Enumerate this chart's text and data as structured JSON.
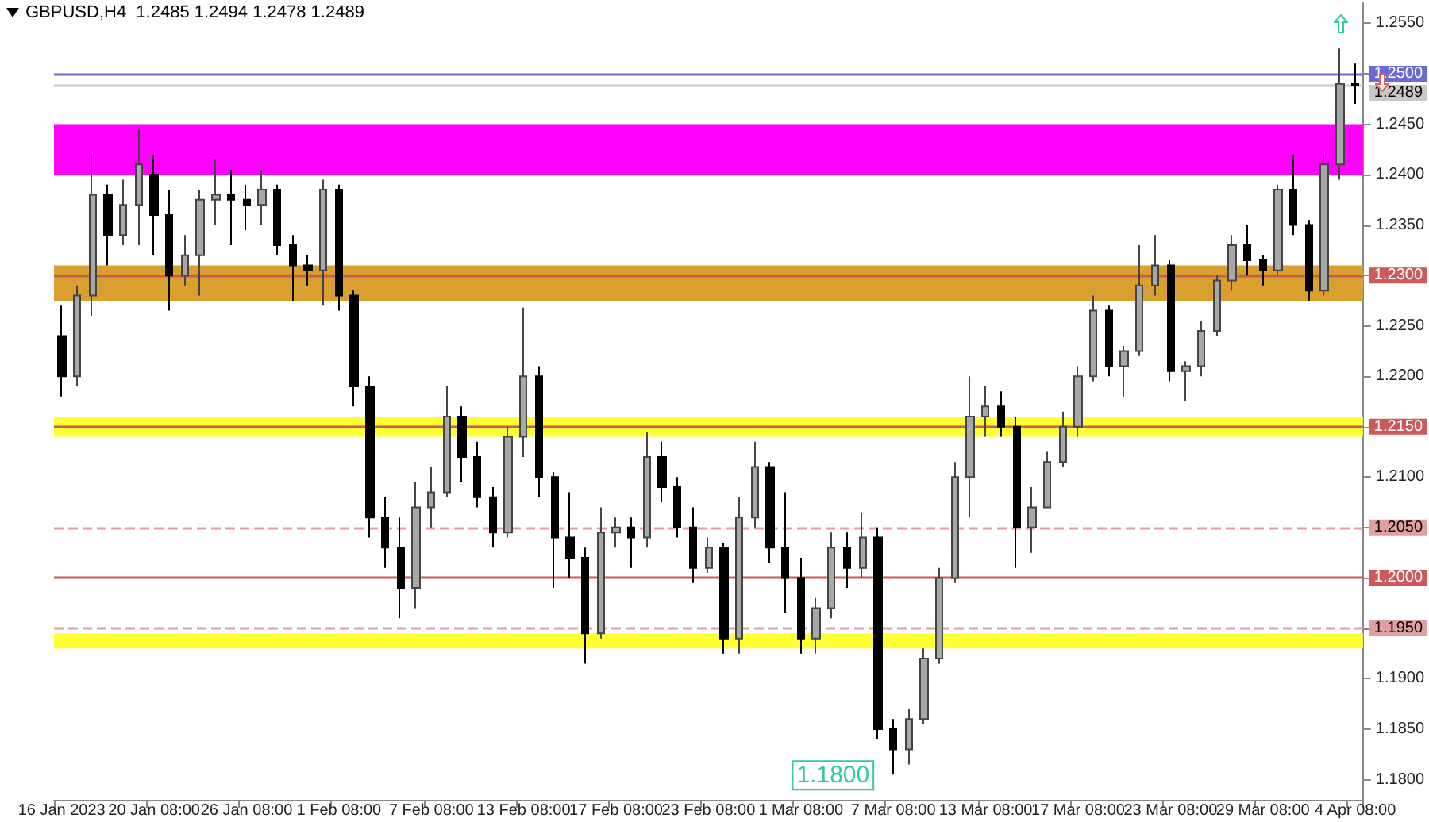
{
  "chart_data": {
    "type": "candlestick",
    "title": "GBPUSD,H4  1.2485 1.2494 1.2478 1.2489",
    "categories": [
      "16 Jan 2023",
      null,
      null,
      null,
      null,
      null,
      "20 Jan 08:00",
      null,
      null,
      null,
      null,
      null,
      "26 Jan 08:00",
      null,
      null,
      null,
      null,
      null,
      "1 Feb 08:00",
      null,
      null,
      null,
      null,
      null,
      "7 Feb 08:00",
      null,
      null,
      null,
      null,
      null,
      "13 Feb 08:00",
      null,
      null,
      null,
      null,
      null,
      "17 Feb 08:00",
      null,
      null,
      null,
      null,
      null,
      "23 Feb 08:00",
      null,
      null,
      null,
      null,
      null,
      "1 Mar 08:00",
      null,
      null,
      null,
      null,
      null,
      "7 Mar 08:00",
      null,
      null,
      null,
      null,
      null,
      "13 Mar 08:00",
      null,
      null,
      null,
      null,
      null,
      "17 Mar 08:00",
      null,
      null,
      null,
      null,
      null,
      "23 Mar 08:00",
      null,
      null,
      null,
      null,
      null,
      "29 Mar 08:00",
      null,
      null,
      null,
      null,
      null,
      "4 Apr 08:00"
    ],
    "ohlc": [
      [
        1.224,
        1.227,
        1.218,
        1.22
      ],
      [
        1.22,
        1.229,
        1.219,
        1.228
      ],
      [
        1.228,
        1.242,
        1.226,
        1.238
      ],
      [
        1.238,
        1.239,
        1.231,
        1.234
      ],
      [
        1.234,
        1.2395,
        1.233,
        1.237
      ],
      [
        1.237,
        1.2445,
        1.233,
        1.241
      ],
      [
        1.24,
        1.242,
        1.232,
        1.236
      ],
      [
        1.236,
        1.2385,
        1.2265,
        1.23
      ],
      [
        1.23,
        1.234,
        1.229,
        1.232
      ],
      [
        1.232,
        1.2385,
        1.228,
        1.2375
      ],
      [
        1.2375,
        1.2415,
        1.235,
        1.238
      ],
      [
        1.238,
        1.2405,
        1.233,
        1.2375
      ],
      [
        1.2375,
        1.239,
        1.2345,
        1.237
      ],
      [
        1.237,
        1.2405,
        1.235,
        1.2385
      ],
      [
        1.2385,
        1.239,
        1.232,
        1.233
      ],
      [
        1.233,
        1.234,
        1.2275,
        1.231
      ],
      [
        1.231,
        1.232,
        1.229,
        1.2305
      ],
      [
        1.2305,
        1.2395,
        1.227,
        1.2385
      ],
      [
        1.2385,
        1.239,
        1.2265,
        1.228
      ],
      [
        1.228,
        1.2285,
        1.217,
        1.219
      ],
      [
        1.219,
        1.22,
        1.204,
        1.206
      ],
      [
        1.206,
        1.208,
        1.201,
        1.203
      ],
      [
        1.203,
        1.206,
        1.196,
        1.199
      ],
      [
        1.199,
        1.2095,
        1.197,
        1.207
      ],
      [
        1.207,
        1.211,
        1.205,
        1.2085
      ],
      [
        1.2085,
        1.219,
        1.208,
        1.216
      ],
      [
        1.216,
        1.217,
        1.2095,
        1.212
      ],
      [
        1.212,
        1.2135,
        1.207,
        1.208
      ],
      [
        1.208,
        1.209,
        1.203,
        1.2045
      ],
      [
        1.2045,
        1.215,
        1.204,
        1.214
      ],
      [
        1.214,
        1.2268,
        1.212,
        1.22
      ],
      [
        1.22,
        1.221,
        1.208,
        1.21
      ],
      [
        1.21,
        1.2105,
        1.199,
        1.204
      ],
      [
        1.204,
        1.2085,
        1.2,
        1.202
      ],
      [
        1.202,
        1.203,
        1.1915,
        1.1945
      ],
      [
        1.1945,
        1.207,
        1.194,
        1.2045
      ],
      [
        1.2045,
        1.206,
        1.203,
        1.205
      ],
      [
        1.205,
        1.206,
        1.201,
        1.204
      ],
      [
        1.204,
        1.2145,
        1.203,
        1.212
      ],
      [
        1.212,
        1.2135,
        1.2075,
        1.209
      ],
      [
        1.209,
        1.21,
        1.204,
        1.205
      ],
      [
        1.205,
        1.207,
        1.1995,
        1.201
      ],
      [
        1.201,
        1.204,
        1.2005,
        1.203
      ],
      [
        1.203,
        1.2035,
        1.1925,
        1.194
      ],
      [
        1.194,
        1.208,
        1.1925,
        1.206
      ],
      [
        1.206,
        1.2135,
        1.205,
        1.211
      ],
      [
        1.211,
        1.2115,
        1.2015,
        1.203
      ],
      [
        1.203,
        1.2085,
        1.1965,
        1.2
      ],
      [
        1.2,
        1.202,
        1.1925,
        1.194
      ],
      [
        1.194,
        1.198,
        1.1925,
        1.197
      ],
      [
        1.197,
        1.2045,
        1.196,
        1.203
      ],
      [
        1.203,
        1.2045,
        1.199,
        1.201
      ],
      [
        1.201,
        1.2065,
        1.2,
        1.204
      ],
      [
        1.204,
        1.205,
        1.184,
        1.185
      ],
      [
        1.185,
        1.186,
        1.1805,
        1.183
      ],
      [
        1.183,
        1.187,
        1.1815,
        1.186
      ],
      [
        1.186,
        1.193,
        1.1855,
        1.192
      ],
      [
        1.192,
        1.201,
        1.1915,
        1.2
      ],
      [
        1.2,
        1.2115,
        1.1995,
        1.21
      ],
      [
        1.21,
        1.22,
        1.206,
        1.216
      ],
      [
        1.216,
        1.219,
        1.214,
        1.217
      ],
      [
        1.217,
        1.2185,
        1.214,
        1.215
      ],
      [
        1.215,
        1.216,
        1.201,
        1.205
      ],
      [
        1.205,
        1.209,
        1.2025,
        1.207
      ],
      [
        1.207,
        1.2125,
        1.207,
        1.2115
      ],
      [
        1.2115,
        1.2165,
        1.211,
        1.215
      ],
      [
        1.215,
        1.221,
        1.214,
        1.22
      ],
      [
        1.22,
        1.228,
        1.2195,
        1.2265
      ],
      [
        1.2265,
        1.227,
        1.22,
        1.221
      ],
      [
        1.221,
        1.223,
        1.218,
        1.2225
      ],
      [
        1.2225,
        1.233,
        1.222,
        1.229
      ],
      [
        1.229,
        1.234,
        1.228,
        1.231
      ],
      [
        1.231,
        1.2315,
        1.2195,
        1.2205
      ],
      [
        1.2205,
        1.2215,
        1.2175,
        1.221
      ],
      [
        1.221,
        1.2255,
        1.22,
        1.2245
      ],
      [
        1.2245,
        1.23,
        1.224,
        1.2295
      ],
      [
        1.2295,
        1.234,
        1.2285,
        1.233
      ],
      [
        1.233,
        1.235,
        1.23,
        1.2315
      ],
      [
        1.2315,
        1.232,
        1.229,
        1.2305
      ],
      [
        1.2305,
        1.239,
        1.23,
        1.2385
      ],
      [
        1.2385,
        1.242,
        1.234,
        1.235
      ],
      [
        1.235,
        1.2355,
        1.2275,
        1.2285
      ],
      [
        1.2285,
        1.242,
        1.228,
        1.241
      ],
      [
        1.241,
        1.2525,
        1.2395,
        1.249
      ],
      [
        1.249,
        1.251,
        1.247,
        1.2489
      ]
    ],
    "ylim": [
      1.178,
      1.257
    ],
    "yticks": [
      {
        "value": 1.18,
        "label": "1.1800"
      },
      {
        "value": 1.185,
        "label": "1.1850"
      },
      {
        "value": 1.19,
        "label": "1.1900"
      },
      {
        "value": 1.195,
        "label": null
      },
      {
        "value": 1.2,
        "label": null
      },
      {
        "value": 1.205,
        "label": null
      },
      {
        "value": 1.21,
        "label": "1.2100"
      },
      {
        "value": 1.215,
        "label": null
      },
      {
        "value": 1.22,
        "label": "1.2200"
      },
      {
        "value": 1.225,
        "label": "1.2250"
      },
      {
        "value": 1.23,
        "label": null
      },
      {
        "value": 1.235,
        "label": "1.2350"
      },
      {
        "value": 1.24,
        "label": "1.2400"
      },
      {
        "value": 1.245,
        "label": "1.2450"
      },
      {
        "value": 1.25,
        "label": null
      },
      {
        "value": 1.255,
        "label": "1.2550"
      }
    ],
    "ref_lines": [
      {
        "axis": "y",
        "value": 1.25,
        "label": "1.2500",
        "color": "#6a6ad0"
      },
      {
        "axis": "y",
        "value": 1.2489,
        "label": "1.2489",
        "color": "#c8c8c8"
      },
      {
        "axis": "y",
        "value": 1.23,
        "label": "1.2300",
        "color": "#cc5a5a"
      },
      {
        "axis": "y",
        "value": 1.215,
        "label": "1.2150",
        "color": "#cc5a5a"
      },
      {
        "axis": "y",
        "value": 1.205,
        "label": "1.2050",
        "color": "#e0a0a0",
        "line_style": "dashed"
      },
      {
        "axis": "y",
        "value": 1.2,
        "label": "1.2000",
        "color": "#cc5a5a"
      },
      {
        "axis": "y",
        "value": 1.195,
        "label": "1.1950",
        "color": "#e0a0a0",
        "line_style": "dashed"
      }
    ],
    "bands": [
      {
        "axis": "y",
        "from": 1.24,
        "to": 1.245,
        "color": "#ff00ff"
      },
      {
        "axis": "y",
        "from": 1.229,
        "to": 1.2305,
        "color": "#fce4cc"
      },
      {
        "axis": "y",
        "from": 1.2275,
        "to": 1.231,
        "color": "#d9a030"
      },
      {
        "axis": "y",
        "from": 1.214,
        "to": 1.216,
        "color": "#ffff33"
      },
      {
        "axis": "y",
        "from": 1.193,
        "to": 1.1945,
        "color": "#ffff33"
      }
    ],
    "annotations": [
      "1.1800"
    ],
    "grid": false
  }
}
